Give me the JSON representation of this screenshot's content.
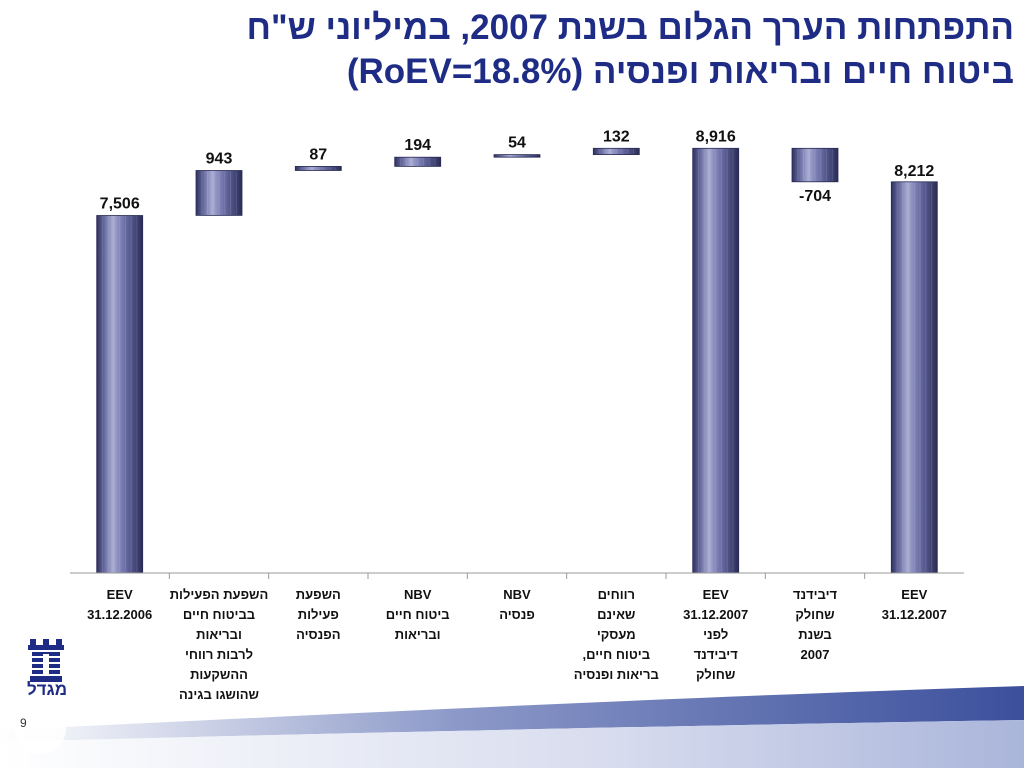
{
  "header": {
    "title_line1": "התפתחות הערך הגלום בשנת 2007, במיליוני ש\"ח",
    "title_line2": "ביטוח חיים ובריאות ופנסיה (RoEV=18.8%)"
  },
  "chart_data": {
    "type": "bar",
    "subtype": "waterfall",
    "categories": [
      "EEV\n31.12.2006",
      "השפעת הפעילות\nבביטוח חיים\nובריאות\nלרבות רווחי\nההשקעות\nשהושגו בגינה",
      "השפעת\nפעילות\nהפנסיה",
      "NBV\nביטוח חיים\nובריאות",
      "NBV\nפנסיה",
      "רווחים\nשאינם\nמעסקי\nביטוח חיים,\nבריאות ופנסיה",
      "EEV\n31.12.2007\nלפני\nדיבידנד\nשחולק",
      "דיבידנד\nשחולק\nבשנת\n2007",
      "EEV\n31.12.2007"
    ],
    "values": [
      7506,
      943,
      87,
      194,
      54,
      132,
      8916,
      -704,
      8212
    ],
    "bar_kind": [
      "total",
      "delta",
      "delta",
      "delta",
      "delta",
      "delta",
      "total",
      "delta",
      "total"
    ],
    "data_labels": [
      "7,506",
      "943",
      "87",
      "194",
      "54",
      "132",
      "8,916",
      "-704",
      "8,212"
    ],
    "ylim": [
      0,
      9300
    ],
    "grid": false,
    "legend": "none"
  },
  "footer": {
    "page_number": "9",
    "logo_text": "מגדל"
  },
  "colors": {
    "title": "#1e2c86",
    "bar_dark": "#3d3f6b",
    "bar_mid": "#7e82b4",
    "bar_light": "#b9bcdc",
    "axis": "#9a9a9a",
    "wave_dark": "#4a5ea8",
    "wave_light": "#c7cfe6"
  }
}
